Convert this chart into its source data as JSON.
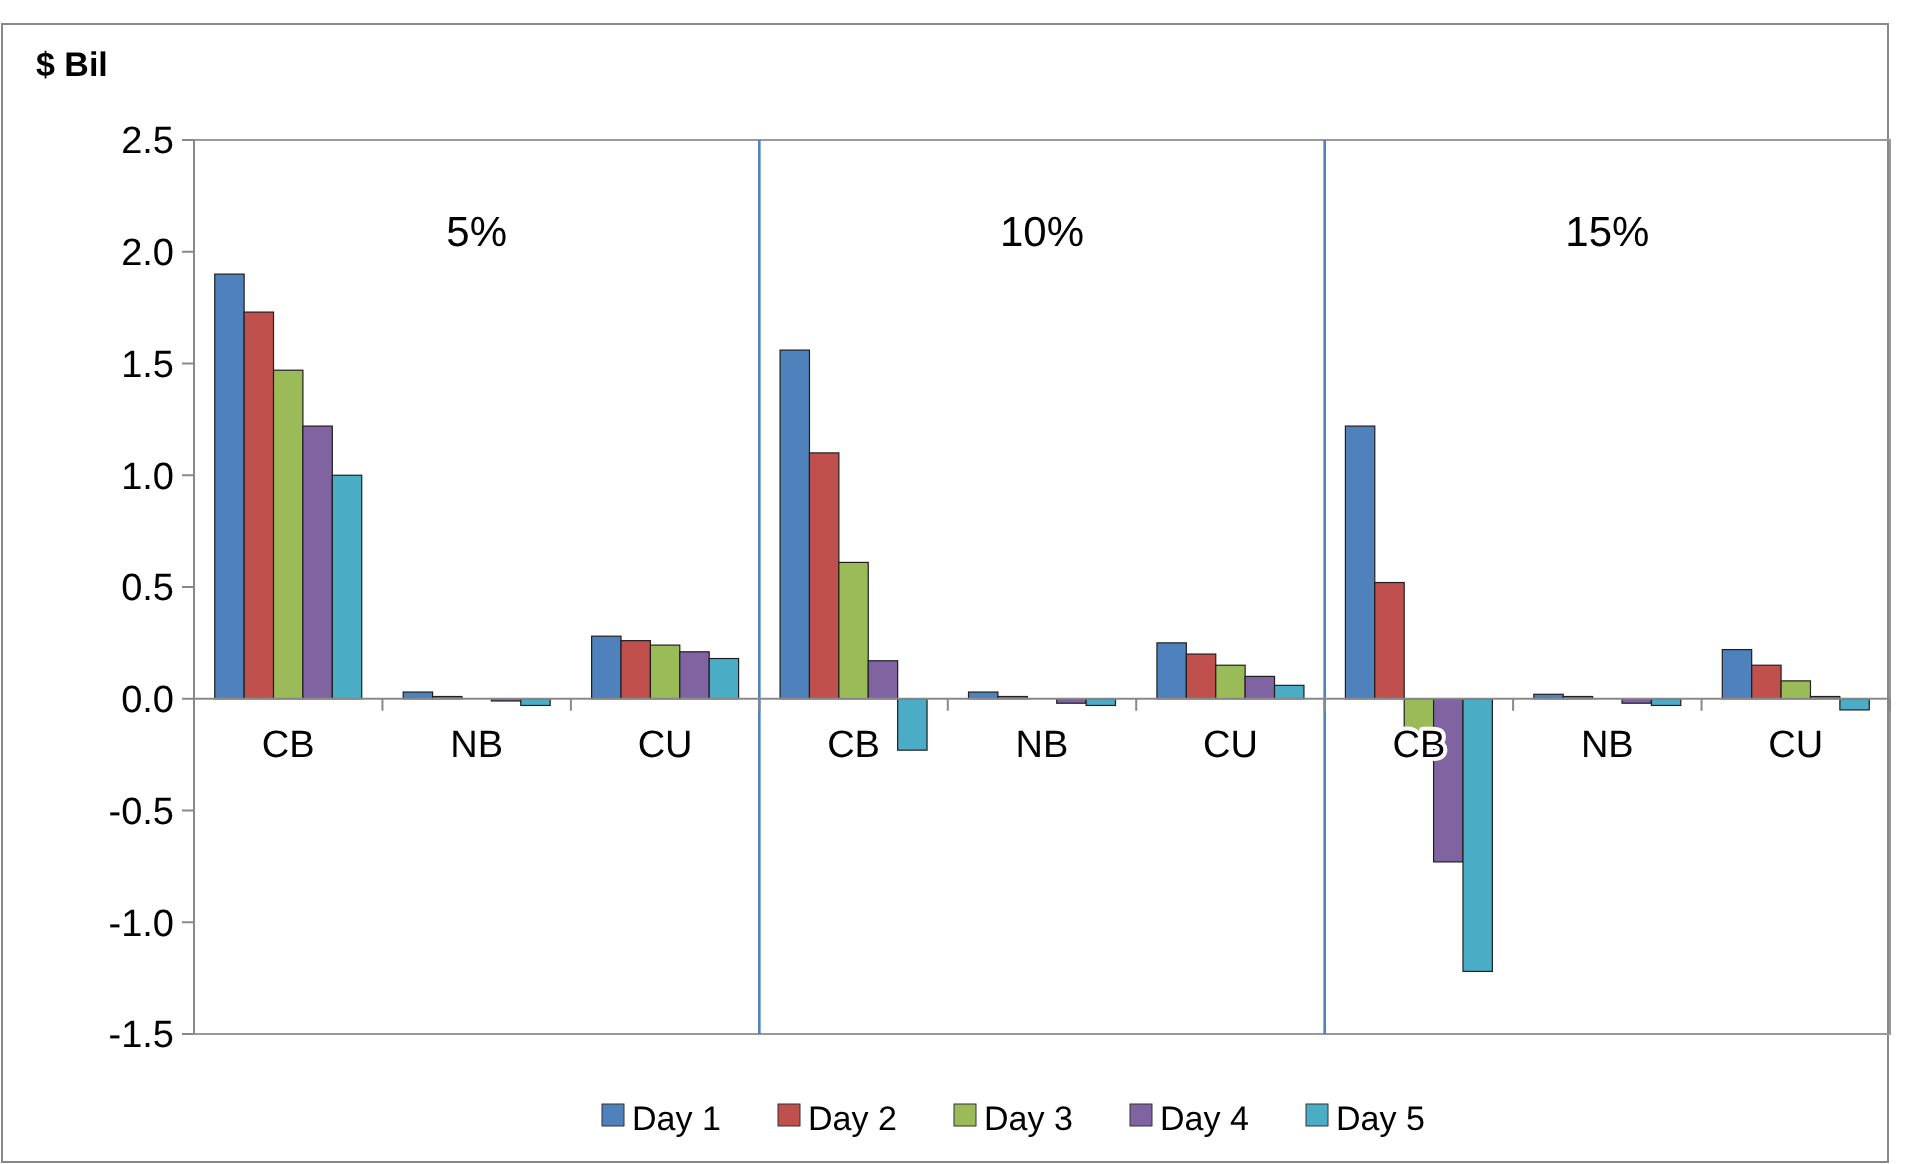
{
  "chart_data": {
    "type": "bar",
    "ylabel": "$ Bil",
    "categories": [
      "CB",
      "NB",
      "CU",
      "CB",
      "NB",
      "CU",
      "CB",
      "NB",
      "CU"
    ],
    "series": [
      {
        "name": "Day 1",
        "color": "#4f81bd",
        "values": [
          1.9,
          0.03,
          0.28,
          1.56,
          0.03,
          0.25,
          1.22,
          0.02,
          0.22
        ]
      },
      {
        "name": "Day 2",
        "color": "#c0504d",
        "values": [
          1.73,
          0.01,
          0.26,
          1.1,
          0.01,
          0.2,
          0.52,
          0.01,
          0.15
        ]
      },
      {
        "name": "Day 3",
        "color": "#9bbb59",
        "values": [
          1.47,
          0,
          0.24,
          0.61,
          0,
          0.15,
          -0.16,
          0,
          0.08
        ]
      },
      {
        "name": "Day 4",
        "color": "#8064a2",
        "values": [
          1.22,
          -0.01,
          0.21,
          0.17,
          -0.02,
          0.1,
          -0.73,
          -0.02,
          0.01
        ]
      },
      {
        "name": "Day 5",
        "color": "#4bacc6",
        "values": [
          1.0,
          -0.03,
          0.18,
          -0.23,
          -0.03,
          0.06,
          -1.22,
          -0.03,
          -0.05
        ]
      }
    ],
    "annotations": [
      "5%",
      "10%",
      "15%"
    ],
    "ylim": [
      -1.5,
      2.5
    ],
    "yticks": [
      {
        "value": -1.5,
        "label": "-1.5"
      },
      {
        "value": -1,
        "label": "-1.0"
      },
      {
        "value": -0.5,
        "label": "-0.5"
      },
      {
        "value": 0,
        "label": "0.0"
      },
      {
        "value": 0.5,
        "label": "0.5"
      },
      {
        "value": 1,
        "label": "1.0"
      },
      {
        "value": 1.5,
        "label": "1.5"
      },
      {
        "value": 2,
        "label": "2.0"
      },
      {
        "value": 2.5,
        "label": "2.5"
      }
    ],
    "grid": false,
    "legend": "bottom"
  }
}
